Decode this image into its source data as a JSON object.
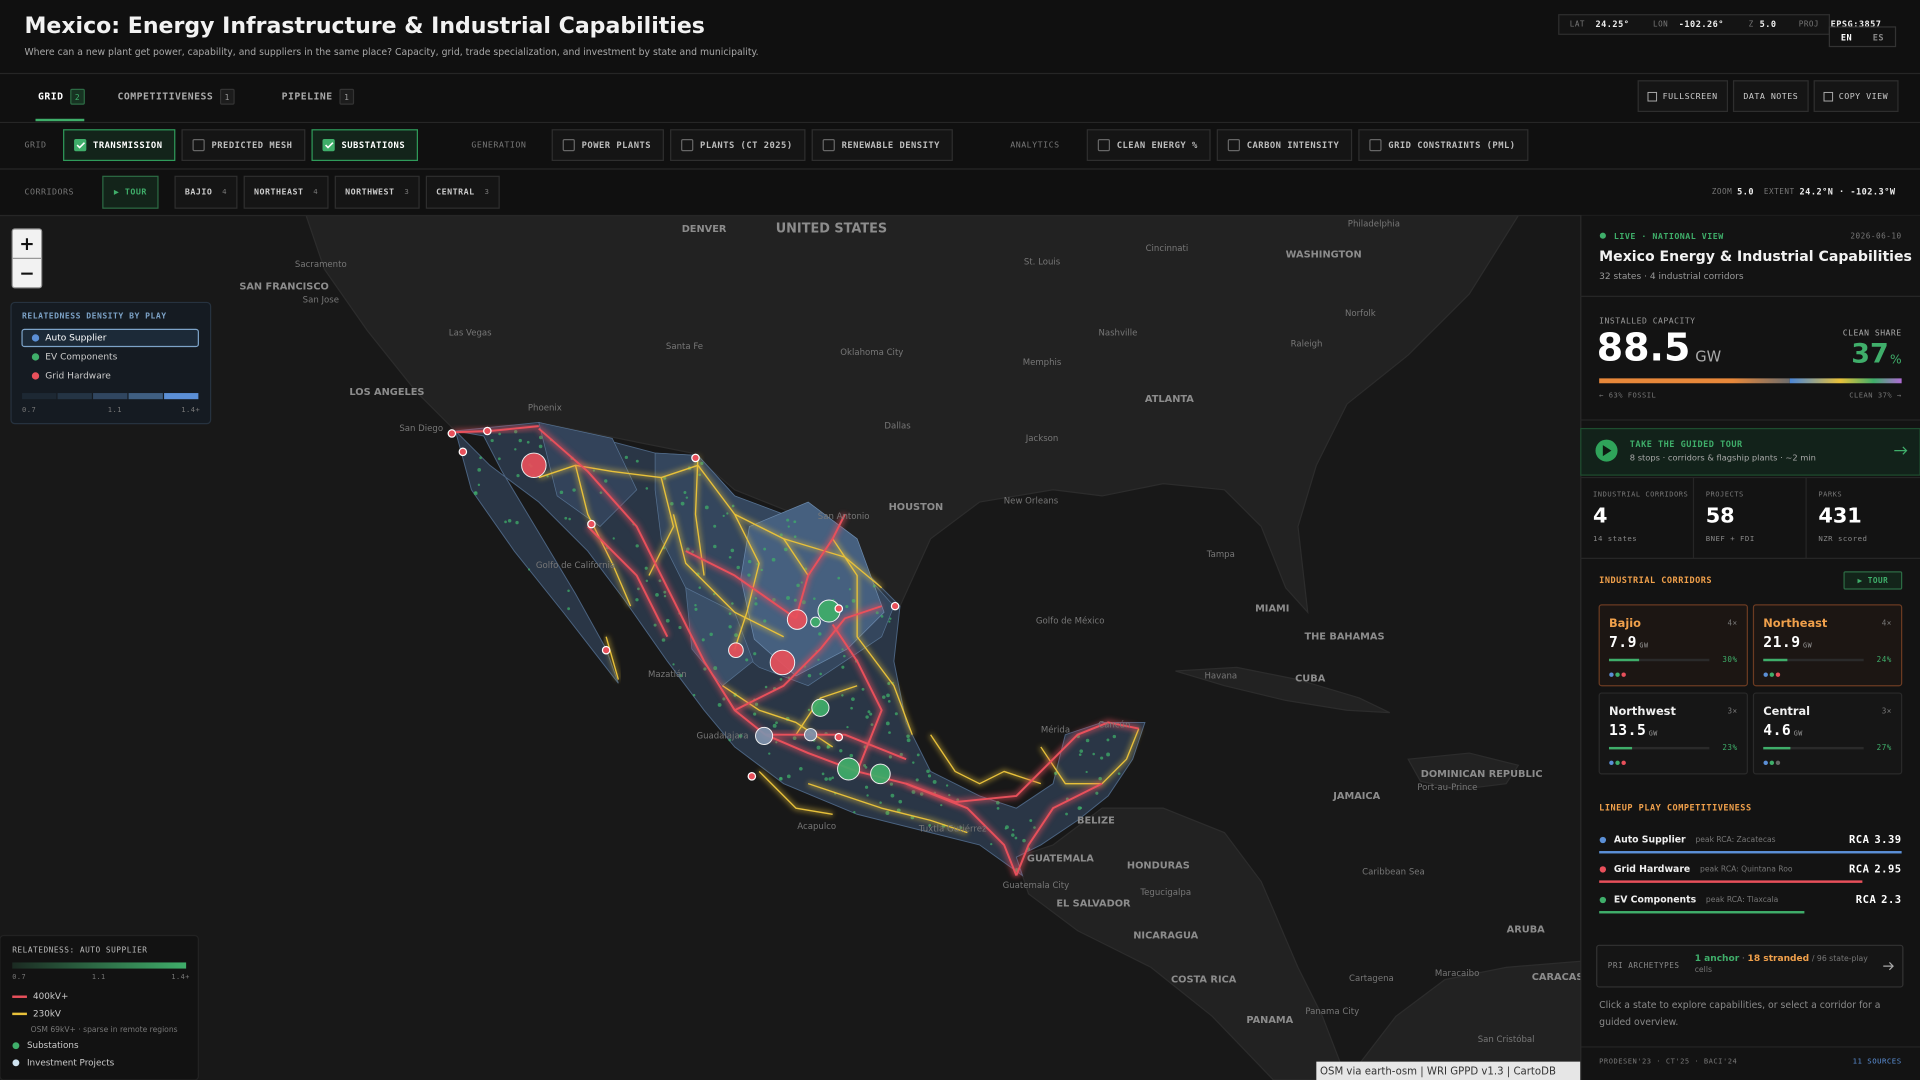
{
  "header": {
    "title": "Mexico: Energy Infrastructure & Industrial Capabilities",
    "subtitle": "Where can a new plant get power, capability, and suppliers in the same place? Capacity, grid, trade specialization, and investment by state and municipality.",
    "coords": [
      {
        "label": "LAT",
        "value": "24.25°"
      },
      {
        "label": "LON",
        "value": "-102.26°"
      },
      {
        "label": "Z",
        "value": "5.0"
      },
      {
        "label": "PROJ",
        "value": "EPSG:3857"
      }
    ],
    "languages": [
      {
        "label": "EN",
        "active": true
      },
      {
        "label": "ES",
        "active": false
      }
    ]
  },
  "tabs": [
    {
      "label": "GRID",
      "count": 2,
      "active": true
    },
    {
      "label": "COMPETITIVENESS",
      "count": 1,
      "active": false
    },
    {
      "label": "PIPELINE",
      "count": 1,
      "active": false
    }
  ],
  "actions": [
    "FULLSCREEN",
    "DATA NOTES",
    "COPY VIEW"
  ],
  "layers": [
    {
      "label": "GRID",
      "items": [
        {
          "label": "TRANSMISSION",
          "checked": true
        },
        {
          "label": "PREDICTED MESH",
          "checked": false
        },
        {
          "label": "SUBSTATIONS",
          "checked": true
        }
      ]
    },
    {
      "label": "GENERATION",
      "items": [
        {
          "label": "POWER PLANTS",
          "checked": false
        },
        {
          "label": "PLANTS (CT 2025)",
          "checked": false
        },
        {
          "label": "RENEWABLE DENSITY",
          "checked": false
        }
      ]
    },
    {
      "label": "ANALYTICS",
      "items": [
        {
          "label": "CLEAN ENERGY %",
          "checked": false
        },
        {
          "label": "CARBON INTENSITY",
          "checked": false
        },
        {
          "label": "GRID CONSTRAINTS (PML)",
          "checked": false
        }
      ]
    }
  ],
  "corridor_bar": {
    "label": "CORRIDORS",
    "tour": "▶ TOUR",
    "items": [
      {
        "label": "BAJIO",
        "count": 4
      },
      {
        "label": "NORTHEAST",
        "count": 4
      },
      {
        "label": "NORTHWEST",
        "count": 3
      },
      {
        "label": "CENTRAL",
        "count": 3
      }
    ],
    "zoom_label": "ZOOM",
    "zoom": "5.0",
    "extent_label": "EXTENT",
    "extent": "24.2°N · -102.3°W"
  },
  "map": {
    "zoom_in": "+",
    "zoom_out": "−",
    "attribution": "OSM via earth-osm | WRI GPPD v1.3 | CartoDB",
    "labels": [
      "DENVER",
      "UNITED STATES",
      "Philadelphia",
      "Cincinnati",
      "WASHINGTON",
      "St. Louis",
      "Sacramento",
      "SAN FRANCISCO",
      "San Jose",
      "Norfolk",
      "Las Vegas",
      "Nashville",
      "Santa Fe",
      "Oklahoma City",
      "Raleigh",
      "Memphis",
      "LOS ANGELES",
      "Phoenix",
      "ATLANTA",
      "Dallas",
      "San Diego",
      "Jackson",
      "HOUSTON",
      "New Orleans",
      "San Antonio",
      "Golfo de California",
      "Tampa",
      "MIAMI",
      "Golfo de México",
      "THE BAHAMAS",
      "Mazatlán",
      "Havana",
      "CUBA",
      "Cancún",
      "Mérida",
      "Guadalajara",
      "JAMAICA",
      "Port-au-Prince",
      "DOMINICAN REPUBLIC",
      "BELIZE",
      "Acapulco",
      "Tuxtla Gutiérrez",
      "GUATEMALA",
      "HONDURAS",
      "Caribbean Sea",
      "Guatemala City",
      "Tegucigalpa",
      "EL SALVADOR",
      "ARUBA",
      "NICARAGUA",
      "Cartagena",
      "Maracaibo",
      "CARACAS",
      "COSTA RICA",
      "Panama City",
      "PANAMA",
      "San Cristóbal"
    ]
  },
  "density_legend": {
    "title": "RELATEDNESS DENSITY BY PLAY",
    "plays": [
      {
        "label": "Auto Supplier",
        "color": "#5b8fd6",
        "selected": true
      },
      {
        "label": "EV Components",
        "color": "#3fae6a",
        "selected": false
      },
      {
        "label": "Grid Hardware",
        "color": "#e8505b",
        "selected": false
      }
    ],
    "ticks": [
      0.7,
      1.1,
      {
        "value": 1.4,
        "label": "1.4+"
      }
    ]
  },
  "line_legend": {
    "title": "RELATEDNESS: AUTO SUPPLIER",
    "ticks": [
      0.7,
      1.1,
      {
        "value": 1.4,
        "label": "1.4+"
      }
    ],
    "items": [
      {
        "label": "400kV+",
        "color": "#e8505b",
        "shape": "line"
      },
      {
        "label": "230kV",
        "color": "#e8c13a",
        "shape": "line"
      },
      {
        "label": "OSM 69kV+ · sparse in remote regions",
        "shape": "note"
      },
      {
        "label": "Substations",
        "color": "#3fae6a",
        "shape": "dot"
      },
      {
        "label": "Investment Projects",
        "color": "#cfe3f0",
        "shape": "dot"
      }
    ]
  },
  "sidebar": {
    "status": "LIVE · NATIONAL VIEW",
    "date": "2026-06-10",
    "title": "Mexico Energy & Industrial Capabilities",
    "subtitle": "32 states · 4 industrial corridors",
    "capacity": {
      "label": "INSTALLED CAPACITY",
      "value": 88.5,
      "unit": "GW",
      "clean_label": "CLEAN SHARE",
      "clean_share": 37,
      "clean_unit": "%",
      "fossil_share": 63,
      "fossil_caption": "← 63% FOSSIL",
      "clean_caption": "CLEAN 37% →"
    },
    "tour": {
      "title": "TAKE THE GUIDED TOUR",
      "subtitle": "8 stops · corridors & flagship plants · ~2 min"
    },
    "stats": [
      {
        "label": "INDUSTRIAL CORRIDORS",
        "value": 4,
        "note": "14 states"
      },
      {
        "label": "PROJECTS",
        "value": 58,
        "note": "BNEF + FDI"
      },
      {
        "label": "PARKS",
        "value": 431,
        "note": "NZR scored"
      }
    ],
    "corridors": {
      "title": "INDUSTRIAL CORRIDORS",
      "tour": "▶ TOUR",
      "items": [
        {
          "name": "Bajio",
          "plays": "4×",
          "capacity": 7.9,
          "unit": "GW",
          "share": 30,
          "share_label": "30%",
          "active": true
        },
        {
          "name": "Northeast",
          "plays": "4×",
          "capacity": 21.9,
          "unit": "GW",
          "share": 24,
          "share_label": "24%",
          "active": true
        },
        {
          "name": "Northwest",
          "plays": "3×",
          "capacity": 13.5,
          "unit": "GW",
          "share": 23,
          "share_label": "23%",
          "active": false
        },
        {
          "name": "Central",
          "plays": "3×",
          "capacity": 4.6,
          "unit": "GW",
          "share": 27,
          "share_label": "27%",
          "active": false
        }
      ]
    },
    "plays": {
      "title": "LINEUP PLAY COMPETITIVENESS",
      "rca_label": "RCA",
      "items": [
        {
          "name": "Auto Supplier",
          "peak": "peak RCA: Zacatecas",
          "rca": 3.39,
          "color": "#5b8fd6"
        },
        {
          "name": "Grid Hardware",
          "peak": "peak RCA: Quintana Roo",
          "rca": 2.95,
          "color": "#e8505b"
        },
        {
          "name": "EV Components",
          "peak": "peak RCA: Tlaxcala",
          "rca": 2.3,
          "color": "#3fae6a"
        }
      ]
    },
    "archetypes": {
      "label": "PRI ARCHETYPES",
      "anchor": "1 anchor",
      "separator": "·",
      "stranded": "18 stranded",
      "rest": "/ 96 state-play cells"
    },
    "help": "Click a state to explore capabilities, or select a corridor for a guided overview.",
    "footer": {
      "sources": "PRODESEN'23 · CT'25 · BACI'24",
      "link": "11 SOURCES"
    }
  }
}
